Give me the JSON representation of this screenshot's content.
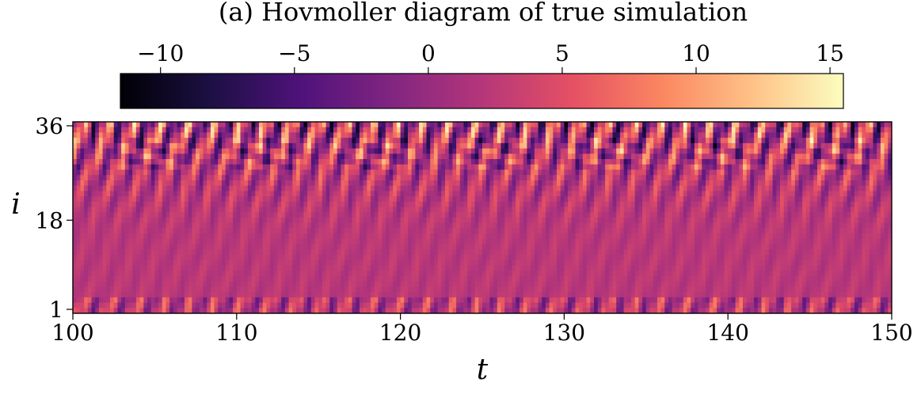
{
  "chart_data": {
    "type": "heatmap",
    "title": "(a) Hovmoller diagram of true simulation",
    "xlabel": "t",
    "ylabel": "i",
    "xlim": [
      100,
      150
    ],
    "ylim": [
      1,
      36
    ],
    "x_ticks": [
      "100",
      "110",
      "120",
      "130",
      "140",
      "150"
    ],
    "x_tick_values": [
      100,
      110,
      120,
      130,
      140,
      150
    ],
    "y_ticks": [
      "1",
      "18",
      "36"
    ],
    "y_tick_values": [
      1,
      18,
      36
    ],
    "colorbar": {
      "placement": "top",
      "range": [
        -11.5,
        15.5
      ],
      "ticks": [
        "−10",
        "−5",
        "0",
        "5",
        "10",
        "15"
      ],
      "tick_values": [
        -10,
        -5,
        0,
        5,
        10,
        15
      ],
      "colormap": "magma",
      "colors": [
        "#000004",
        "#1c1044",
        "#4f127b",
        "#812581",
        "#b5367a",
        "#e55064",
        "#fb8761",
        "#fec287",
        "#fcfdbf"
      ]
    },
    "grid": false,
    "legend": "none"
  }
}
